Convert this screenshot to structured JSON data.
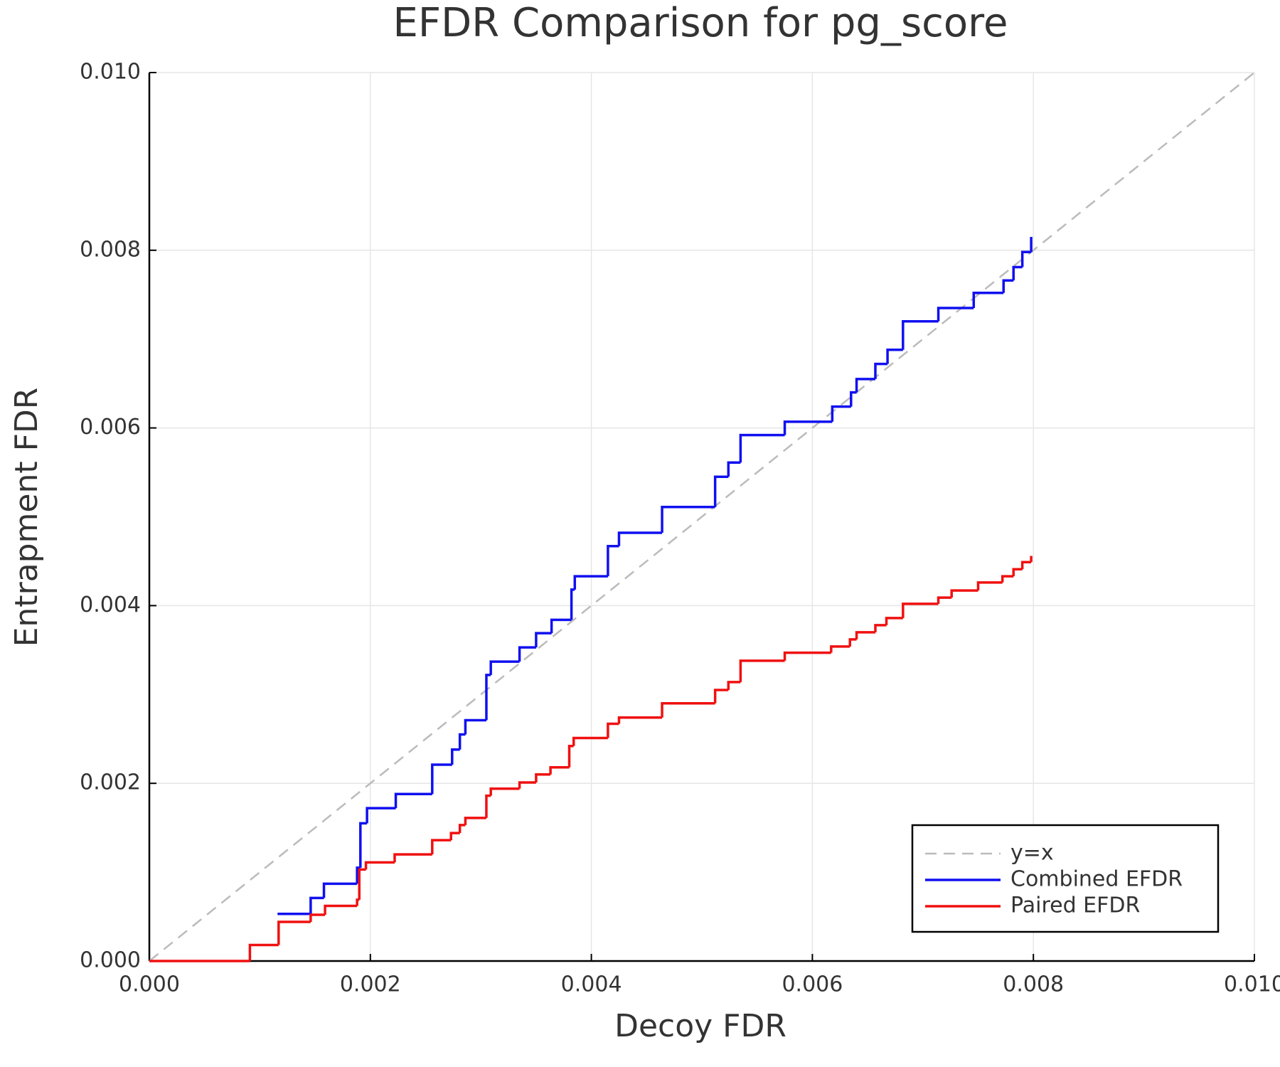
{
  "chart_data": {
    "type": "line",
    "title": "EFDR Comparison for pg_score",
    "x_label": "Decoy FDR",
    "y_label": "Entrapment FDR",
    "xlim": [
      0,
      0.01
    ],
    "ylim": [
      0,
      0.01
    ],
    "xticks": [
      {
        "value": 0,
        "label": "0.000"
      },
      {
        "value": 0.002,
        "label": "0.002"
      },
      {
        "value": 0.004,
        "label": "0.004"
      },
      {
        "value": 0.006,
        "label": "0.006"
      },
      {
        "value": 0.008,
        "label": "0.008"
      },
      {
        "value": 0.01,
        "label": "0.010"
      }
    ],
    "yticks": [
      {
        "value": 0,
        "label": "0.000"
      },
      {
        "value": 0.002,
        "label": "0.002"
      },
      {
        "value": 0.004,
        "label": "0.004"
      },
      {
        "value": 0.006,
        "label": "0.006"
      },
      {
        "value": 0.008,
        "label": "0.008"
      },
      {
        "value": 0.01,
        "label": "0.010"
      }
    ],
    "grid": true,
    "legend": "lower right",
    "series": [
      {
        "name": "y=x",
        "color": "#bbbbbb",
        "dashed": true,
        "x": [
          0,
          0.01
        ],
        "values": [
          0,
          0.01
        ]
      },
      {
        "name": "Combined EFDR",
        "color": "#1010f0",
        "step": true,
        "x": [
          0.00116,
          0.00146,
          0.00158,
          0.00188,
          0.00191,
          0.00197,
          0.00223,
          0.00256,
          0.00274,
          0.00281,
          0.00286,
          0.00305,
          0.00309,
          0.00335,
          0.0035,
          0.00364,
          0.00382,
          0.00385,
          0.00415,
          0.00425,
          0.00464,
          0.00512,
          0.00524,
          0.00535,
          0.00575,
          0.00618,
          0.00635,
          0.0064,
          0.00657,
          0.00668,
          0.00682,
          0.00714,
          0.00746,
          0.00773,
          0.00782,
          0.0079,
          0.00798
        ],
        "values": [
          0.00053,
          0.00071,
          0.00087,
          0.00105,
          0.00155,
          0.00172,
          0.00188,
          0.00221,
          0.00238,
          0.00255,
          0.00271,
          0.00322,
          0.00337,
          0.00353,
          0.00369,
          0.00384,
          0.00418,
          0.00433,
          0.00467,
          0.00482,
          0.00511,
          0.00545,
          0.00561,
          0.00592,
          0.00607,
          0.00624,
          0.0064,
          0.00655,
          0.00672,
          0.00688,
          0.0072,
          0.00735,
          0.00752,
          0.00766,
          0.00781,
          0.00798,
          0.00815
        ]
      },
      {
        "name": "Paired EFDR",
        "color": "#f01010",
        "step": true,
        "x": [
          0,
          0.00091,
          0.00117,
          0.00146,
          0.00159,
          0.00188,
          0.0019,
          0.00196,
          0.00222,
          0.00256,
          0.00273,
          0.00281,
          0.00286,
          0.00305,
          0.00309,
          0.00335,
          0.0035,
          0.00363,
          0.0038,
          0.00384,
          0.00415,
          0.00425,
          0.00464,
          0.00512,
          0.00524,
          0.00535,
          0.00575,
          0.00617,
          0.00634,
          0.0064,
          0.00657,
          0.00667,
          0.00682,
          0.00714,
          0.00726,
          0.0075,
          0.00772,
          0.00782,
          0.0079,
          0.00798
        ],
        "values": [
          0,
          0.00018,
          0.00044,
          0.00052,
          0.00062,
          0.00069,
          0.00103,
          0.00111,
          0.0012,
          0.00136,
          0.00144,
          0.00153,
          0.00161,
          0.00186,
          0.00194,
          0.00201,
          0.0021,
          0.00218,
          0.00242,
          0.00251,
          0.00267,
          0.00274,
          0.0029,
          0.00305,
          0.00314,
          0.00338,
          0.00347,
          0.00354,
          0.00362,
          0.0037,
          0.00378,
          0.00386,
          0.00402,
          0.00409,
          0.00417,
          0.00426,
          0.00433,
          0.00441,
          0.00449,
          0.00456
        ]
      }
    ]
  }
}
